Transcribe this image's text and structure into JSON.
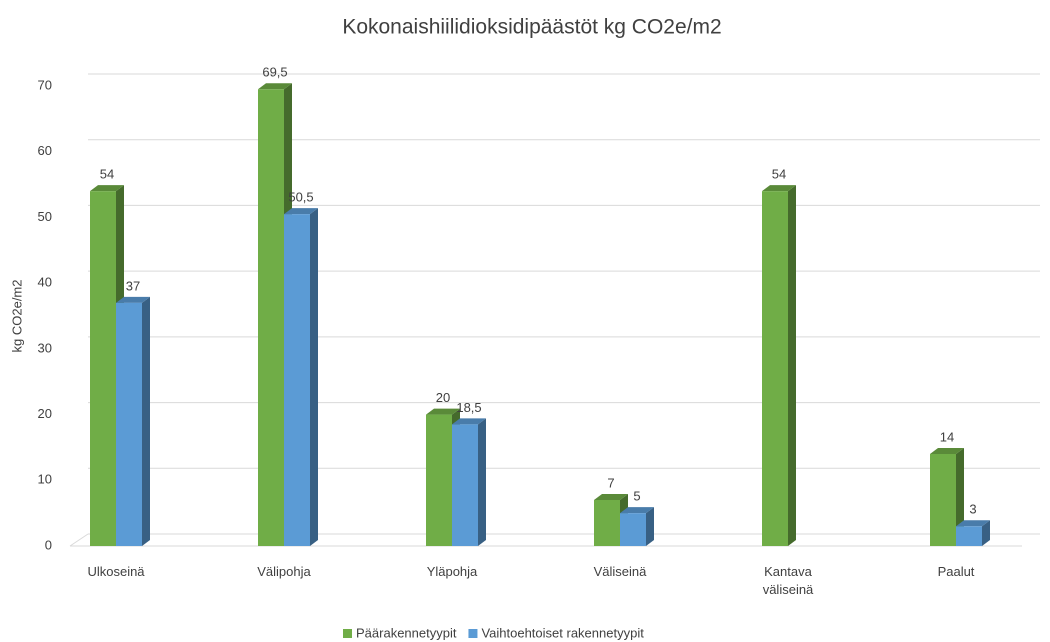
{
  "chart_data": {
    "type": "bar3d",
    "title": "Kokonaishiilidioksidipäästöt kg CO2e/m2",
    "y_label": "kg CO2e/m2",
    "categories": [
      "Ulkoseinä",
      "Välipohja",
      "Yläpohja",
      "Väliseinä",
      "Kantava väliseinä",
      "Paalut"
    ],
    "series": [
      {
        "name": "Päärakennetyypit",
        "color": "#70ad47",
        "values": [
          54,
          69.5,
          20,
          7,
          54,
          14
        ],
        "value_labels": [
          "54",
          "69,5",
          "20",
          "7",
          "54",
          "14"
        ]
      },
      {
        "name": "Vaihtoehtoiset rakennetyypit",
        "color": "#5b9bd5",
        "values": [
          37,
          50.5,
          18.5,
          5,
          null,
          3
        ],
        "value_labels": [
          "37",
          "50,5",
          "18,5",
          "5",
          null,
          "3"
        ]
      }
    ],
    "ylim": [
      0,
      70
    ],
    "yticks": [
      0,
      10,
      20,
      30,
      40,
      50,
      60,
      70
    ],
    "grid": true,
    "legend": "bottom"
  }
}
